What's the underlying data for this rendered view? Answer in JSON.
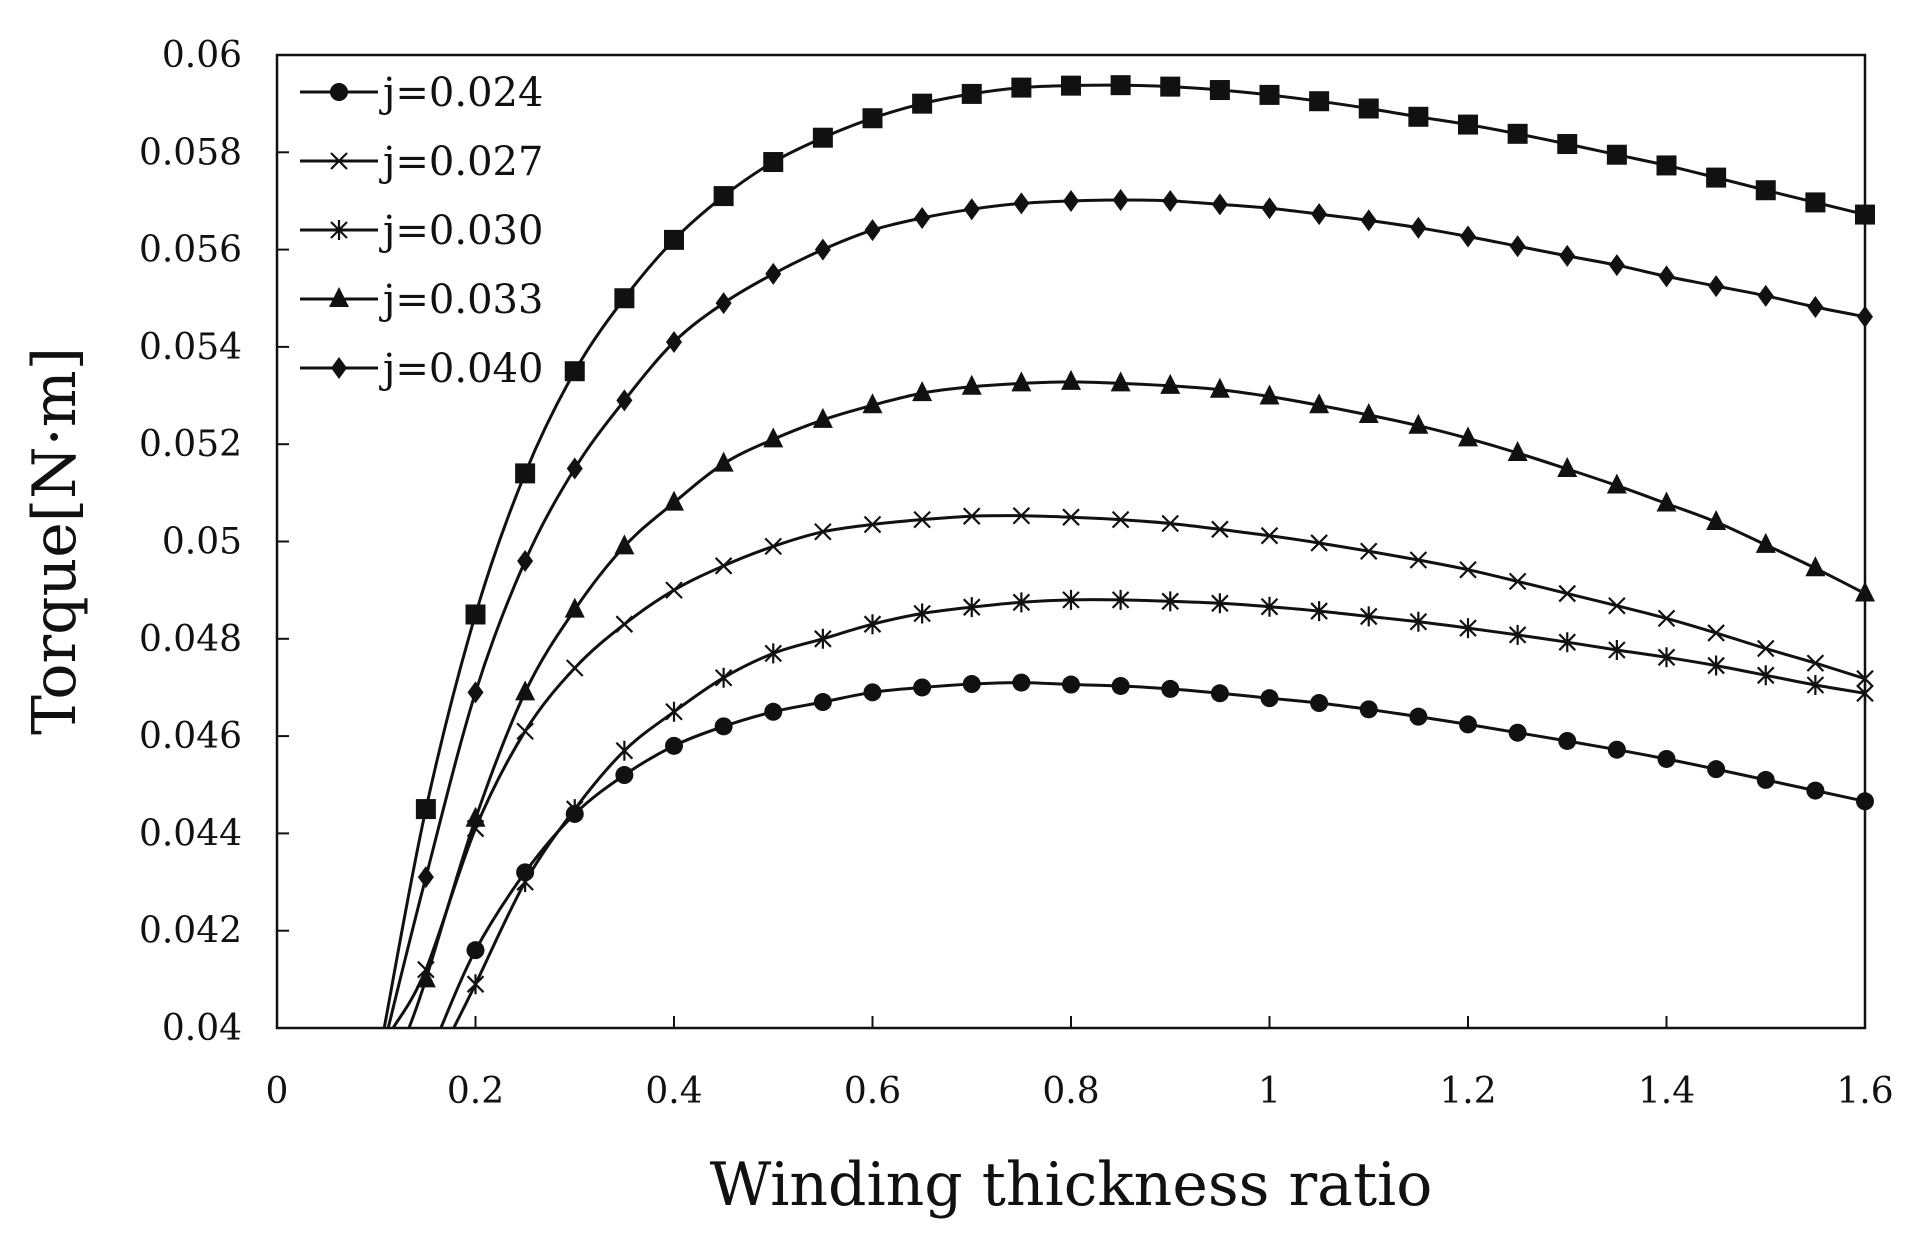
{
  "chart_data": {
    "type": "line",
    "title": "",
    "xlabel": "Winding thickness ratio",
    "ylabel": "Torque[N·m]",
    "xlim": [
      0,
      1.6
    ],
    "ylim": [
      0.04,
      0.06
    ],
    "x_ticks": [
      0,
      0.2,
      0.4,
      0.6,
      0.8,
      1,
      1.2,
      1.4,
      1.6
    ],
    "x_tick_labels": [
      "0",
      "0.2",
      "0.4",
      "0.6",
      "0.8",
      "1",
      "1.2",
      "1.4",
      "1.6"
    ],
    "y_ticks": [
      0.04,
      0.042,
      0.044,
      0.046,
      0.048,
      0.05,
      0.052,
      0.054,
      0.056,
      0.058,
      0.06
    ],
    "y_tick_labels": [
      "0.04",
      "0.042",
      "0.044",
      "0.046",
      "0.048",
      "0.05",
      "0.052",
      "0.054",
      "0.056",
      "0.058",
      "0.06"
    ],
    "grid": false,
    "legend_position": "top-left",
    "x": [
      0.15,
      0.2,
      0.25,
      0.3,
      0.35,
      0.4,
      0.45,
      0.5,
      0.55,
      0.6,
      0.65,
      0.7,
      0.75,
      0.8,
      0.85,
      0.9,
      0.95,
      1.0,
      1.05,
      1.1,
      1.15,
      1.2,
      1.25,
      1.3,
      1.35,
      1.4,
      1.45,
      1.5,
      1.55,
      1.6
    ],
    "series": [
      {
        "name": "j=0.024",
        "marker": "circle",
        "in_legend": true,
        "start_x": 0.165,
        "values": [
          null,
          0.0416,
          0.0432,
          0.0444,
          0.0452,
          0.0458,
          0.0462,
          0.0465,
          0.0467,
          0.0469,
          0.047,
          0.04707,
          0.0471,
          0.04706,
          0.04703,
          0.04697,
          0.04688,
          0.04678,
          0.04668,
          0.04655,
          0.0464,
          0.04624,
          0.04607,
          0.0459,
          0.04572,
          0.04553,
          0.04532,
          0.0451,
          0.04488,
          0.04466
        ]
      },
      {
        "name": "j=0.027",
        "marker": "x",
        "in_legend": true,
        "start_x": 0.117,
        "values": [
          0.0412,
          0.0441,
          0.0461,
          0.0474,
          0.0483,
          0.049,
          0.0495,
          0.0499,
          0.0502,
          0.05035,
          0.05045,
          0.05052,
          0.05053,
          0.0505,
          0.05045,
          0.05037,
          0.05025,
          0.05012,
          0.04997,
          0.0498,
          0.04962,
          0.04942,
          0.04918,
          0.04893,
          0.04868,
          0.04842,
          0.04812,
          0.0478,
          0.0475,
          0.04718
        ]
      },
      {
        "name": "j=0.030",
        "marker": "asterisk",
        "in_legend": true,
        "start_x": 0.178,
        "values": [
          null,
          0.0409,
          0.043,
          0.0445,
          0.0457,
          0.0465,
          0.0472,
          0.0477,
          0.048,
          0.0483,
          0.04852,
          0.04865,
          0.04875,
          0.0488,
          0.0488,
          0.04877,
          0.04873,
          0.04866,
          0.04857,
          0.04846,
          0.04835,
          0.04822,
          0.04808,
          0.04793,
          0.04777,
          0.04762,
          0.04745,
          0.04725,
          0.04705,
          0.04688
        ]
      },
      {
        "name": "j=0.033",
        "marker": "triangle",
        "in_legend": true,
        "start_x": 0.133,
        "values": [
          0.041,
          0.0443,
          0.0469,
          0.0486,
          0.0499,
          0.0508,
          0.0516,
          0.0521,
          0.0525,
          0.0528,
          0.05305,
          0.05318,
          0.05325,
          0.05328,
          0.05325,
          0.0532,
          0.05312,
          0.05298,
          0.0528,
          0.0526,
          0.05238,
          0.05212,
          0.05182,
          0.05149,
          0.05115,
          0.05078,
          0.0504,
          0.04993,
          0.04945,
          0.04893
        ]
      },
      {
        "name": "j=0.040",
        "marker": "diamond",
        "in_legend": true,
        "start_x": 0.112,
        "values": [
          0.0431,
          0.0469,
          0.0496,
          0.0515,
          0.0529,
          0.0541,
          0.0549,
          0.0555,
          0.056,
          0.0564,
          0.05665,
          0.05683,
          0.05695,
          0.057,
          0.05702,
          0.057,
          0.05693,
          0.05685,
          0.05673,
          0.0566,
          0.05645,
          0.05627,
          0.05607,
          0.05587,
          0.05568,
          0.05545,
          0.05525,
          0.05505,
          0.05482,
          0.05462
        ]
      },
      {
        "name": "",
        "marker": "square",
        "in_legend": false,
        "start_x": 0.108,
        "values": [
          0.0445,
          0.0485,
          0.0514,
          0.0535,
          0.055,
          0.0562,
          0.0571,
          0.0578,
          0.0583,
          0.0587,
          0.059,
          0.0592,
          0.05933,
          0.05937,
          0.05938,
          0.05935,
          0.05928,
          0.05918,
          0.05905,
          0.0589,
          0.05873,
          0.05857,
          0.05838,
          0.05817,
          0.05795,
          0.05773,
          0.05748,
          0.05722,
          0.05697,
          0.05672
        ]
      }
    ]
  }
}
